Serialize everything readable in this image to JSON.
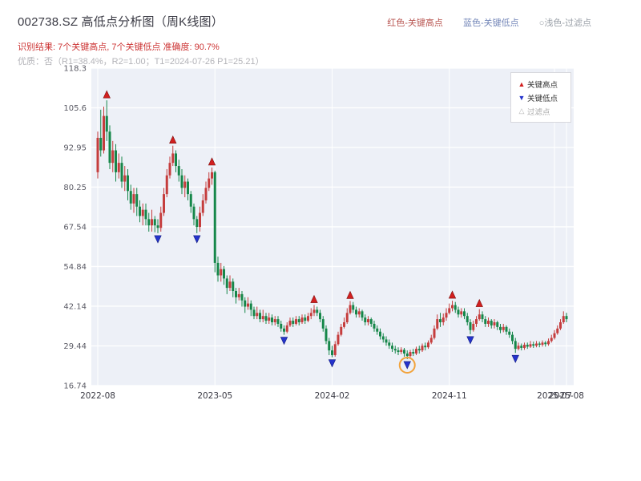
{
  "header": {
    "title": "002738.SZ 高低点分析图（周K线图）",
    "color_key": [
      {
        "label": "红色-关键高点",
        "color": "#b85450"
      },
      {
        "label": "蓝色-关键低点",
        "color": "#7386b8"
      },
      {
        "label": "○浅色-过滤点",
        "color": "#9aa0a8"
      }
    ],
    "result_line": "识别结果: 7个关键高点, 7个关键低点  准确度: 90.7%",
    "quality_line": "优质：否（R1=38.4%，R2=1.00；T1=2024-07-26 P1=25.21）"
  },
  "chart_legend": {
    "items": [
      {
        "label": "关键高点",
        "marker": "up-triangle",
        "color": "#d21f1f"
      },
      {
        "label": "关键低点",
        "marker": "down-triangle",
        "color": "#2433cc"
      },
      {
        "label": "过滤点",
        "marker": "up-triangle-outline",
        "color": "#aaaaaa"
      }
    ]
  },
  "chart_data": {
    "type": "candlestick",
    "symbol": "002738.SZ",
    "frequency": "weekly",
    "up_color": "#c53d3d",
    "down_color": "#16874a",
    "plot_bg": "#edf0f7",
    "ylim": [
      16.74,
      118.3
    ],
    "yticks": [
      {
        "label": "16.74",
        "value": 16.74
      },
      {
        "label": "29.44",
        "value": 29.44
      },
      {
        "label": "42.14",
        "value": 42.14
      },
      {
        "label": "54.84",
        "value": 54.84
      },
      {
        "label": "67.54",
        "value": 67.54
      },
      {
        "label": "80.25",
        "value": 80.25
      },
      {
        "label": "92.95",
        "value": 92.95
      },
      {
        "label": "105.6",
        "value": 105.6
      },
      {
        "label": "118.3",
        "value": 118.3
      }
    ],
    "xticks": [
      {
        "label": "2022-08",
        "index": 0
      },
      {
        "label": "2023-05",
        "index": 39
      },
      {
        "label": "2024-02",
        "index": 78
      },
      {
        "label": "2024-11",
        "index": 117
      },
      {
        "label": "2025-07",
        "index": 152
      },
      {
        "label": "2025-08",
        "index": 156
      }
    ],
    "dates": [
      "2022-08-05",
      "2022-08-12",
      "2022-08-19",
      "2022-08-26",
      "2022-09-02",
      "2022-09-09",
      "2022-09-16",
      "2022-09-23",
      "2022-09-30",
      "2022-10-07",
      "2022-10-14",
      "2022-10-21",
      "2022-10-28",
      "2022-11-04",
      "2022-11-11",
      "2022-11-18",
      "2022-11-25",
      "2022-12-02",
      "2022-12-09",
      "2022-12-16",
      "2022-12-23",
      "2022-12-30",
      "2023-01-06",
      "2023-01-13",
      "2023-01-20",
      "2023-01-27",
      "2023-02-03",
      "2023-02-10",
      "2023-02-17",
      "2023-02-24",
      "2023-03-03",
      "2023-03-10",
      "2023-03-17",
      "2023-03-24",
      "2023-03-31",
      "2023-04-07",
      "2023-04-14",
      "2023-04-21",
      "2023-04-28",
      "2023-05-05",
      "2023-05-12",
      "2023-05-19",
      "2023-05-26",
      "2023-06-02",
      "2023-06-09",
      "2023-06-16",
      "2023-06-23",
      "2023-06-30",
      "2023-07-07",
      "2023-07-14",
      "2023-07-21",
      "2023-07-28",
      "2023-08-04",
      "2023-08-11",
      "2023-08-18",
      "2023-08-25",
      "2023-09-01",
      "2023-09-08",
      "2023-09-15",
      "2023-09-22",
      "2023-09-29",
      "2023-10-06",
      "2023-10-13",
      "2023-10-20",
      "2023-10-27",
      "2023-11-03",
      "2023-11-10",
      "2023-11-17",
      "2023-11-24",
      "2023-12-01",
      "2023-12-08",
      "2023-12-15",
      "2023-12-22",
      "2023-12-29",
      "2024-01-05",
      "2024-01-12",
      "2024-01-19",
      "2024-01-26",
      "2024-02-02",
      "2024-02-09",
      "2024-02-16",
      "2024-02-23",
      "2024-03-01",
      "2024-03-08",
      "2024-03-15",
      "2024-03-22",
      "2024-03-29",
      "2024-04-05",
      "2024-04-12",
      "2024-04-19",
      "2024-04-26",
      "2024-05-03",
      "2024-05-10",
      "2024-05-17",
      "2024-05-24",
      "2024-05-31",
      "2024-06-07",
      "2024-06-14",
      "2024-06-21",
      "2024-06-28",
      "2024-07-05",
      "2024-07-12",
      "2024-07-19",
      "2024-07-26",
      "2024-08-02",
      "2024-08-09",
      "2024-08-16",
      "2024-08-23",
      "2024-08-30",
      "2024-09-06",
      "2024-09-13",
      "2024-09-20",
      "2024-09-27",
      "2024-10-04",
      "2024-10-11",
      "2024-10-18",
      "2024-10-25",
      "2024-11-01",
      "2024-11-08",
      "2024-11-15",
      "2024-11-22",
      "2024-11-29",
      "2024-12-06",
      "2024-12-13",
      "2024-12-20",
      "2024-12-27",
      "2025-01-03",
      "2025-01-10",
      "2025-01-17",
      "2025-01-24",
      "2025-01-31",
      "2025-02-07",
      "2025-02-14",
      "2025-02-21",
      "2025-02-28",
      "2025-03-07",
      "2025-03-14",
      "2025-03-21",
      "2025-03-28",
      "2025-04-04",
      "2025-04-11",
      "2025-04-18",
      "2025-04-25",
      "2025-05-02",
      "2025-05-09",
      "2025-05-16",
      "2025-05-23",
      "2025-05-30",
      "2025-06-06",
      "2025-06-13",
      "2025-06-20",
      "2025-06-27",
      "2025-07-04",
      "2025-07-11",
      "2025-07-18",
      "2025-07-25",
      "2025-08-01"
    ],
    "open": [
      85,
      96,
      92,
      103,
      98,
      88,
      92,
      85,
      88,
      82,
      84,
      79,
      75,
      78,
      74,
      71,
      73,
      70,
      68,
      70,
      68,
      67.2,
      72,
      78,
      84,
      88,
      91,
      87,
      84,
      80,
      82,
      78,
      74,
      70,
      67.5,
      72,
      76,
      80,
      83,
      85,
      56,
      52,
      54,
      51,
      48,
      50,
      47,
      45,
      46,
      44,
      42,
      43,
      41,
      39,
      40,
      38,
      39,
      37.5,
      38.5,
      37,
      38,
      36.5,
      35,
      34,
      36,
      37.5,
      36.5,
      38,
      37,
      38.5,
      37.5,
      39,
      40,
      41,
      40,
      38,
      35,
      31,
      28,
      26.5,
      30,
      33,
      35.5,
      37,
      40,
      42.5,
      41,
      39.5,
      40.5,
      38.5,
      37,
      38,
      36.5,
      35,
      34,
      32.5,
      31.5,
      30.5,
      29.5,
      28.5,
      28,
      27.5,
      28.2,
      27,
      26.2,
      27.5,
      27,
      28.5,
      28,
      29.5,
      29,
      30.5,
      32,
      35,
      38,
      37,
      38.5,
      40,
      41.5,
      42.5,
      41,
      39.5,
      40.5,
      39,
      37,
      34.5,
      36.5,
      38,
      39.5,
      38,
      36.5,
      37.5,
      36,
      37,
      35.5,
      34.5,
      35.5,
      34,
      33,
      31,
      28.5,
      29.5,
      28.8,
      29.8,
      29.2,
      30,
      29.5,
      30.2,
      29.8,
      30.5,
      30,
      31,
      32,
      33.5,
      35,
      37,
      39
    ],
    "high": [
      98,
      105,
      106,
      108,
      100,
      95,
      94,
      91,
      90,
      87,
      86,
      81,
      80,
      80,
      76,
      75,
      75,
      72,
      73,
      71,
      70,
      74,
      80,
      86,
      90,
      93.5,
      92,
      89,
      86,
      84,
      83,
      79,
      75,
      71,
      74,
      78,
      82,
      85,
      86.5,
      85.5,
      58,
      56,
      55,
      52,
      52,
      51,
      48,
      48,
      47,
      45,
      45,
      44,
      42,
      42,
      41,
      41,
      40,
      40,
      39.5,
      39,
      39,
      37.5,
      36,
      37,
      38.5,
      38.5,
      39,
      39,
      39.5,
      39.5,
      40,
      41.5,
      42.5,
      42,
      41,
      39,
      36,
      32,
      29.5,
      31,
      34,
      36.5,
      38.5,
      41.5,
      43.8,
      43.5,
      42,
      41.5,
      41,
      39.5,
      39,
      38.5,
      37.5,
      36,
      35,
      33.5,
      32.5,
      31.5,
      30.5,
      29.5,
      29,
      29,
      28.8,
      28,
      28.2,
      28.5,
      29.2,
      29.5,
      30.2,
      30.5,
      31.2,
      33,
      36,
      39.5,
      40,
      39.8,
      41.5,
      43,
      43.9,
      43.5,
      42,
      41.5,
      41.5,
      40,
      38,
      37.5,
      39,
      41.2,
      40.5,
      39,
      38.5,
      38,
      38,
      37.5,
      36.5,
      36.5,
      36,
      35,
      34,
      32,
      30.5,
      30.2,
      30.5,
      30.5,
      31,
      30.8,
      31,
      30.8,
      31.2,
      31,
      31.8,
      33,
      34.5,
      36,
      38,
      40.5,
      40
    ],
    "low": [
      83,
      90,
      91,
      95,
      86,
      85,
      82,
      83,
      80,
      79,
      76,
      73,
      72,
      71,
      69,
      68,
      68,
      66,
      66,
      65.8,
      65.5,
      66,
      71,
      77,
      83,
      87,
      85,
      82,
      78,
      77,
      76,
      72,
      68,
      65.5,
      66,
      71,
      75,
      79,
      81,
      53,
      50,
      50,
      49,
      46,
      47,
      45,
      43,
      44,
      42,
      40,
      41,
      39,
      38,
      38,
      37,
      37,
      36.5,
      36.5,
      36,
      36,
      35.5,
      34,
      33,
      33.5,
      35.5,
      35.5,
      36,
      36,
      36.5,
      36.5,
      37,
      38,
      39,
      39,
      37,
      34,
      30,
      26.5,
      25.8,
      26,
      29.5,
      32.5,
      35,
      36.5,
      39.5,
      40,
      38.5,
      38.5,
      37.5,
      36,
      36,
      35.5,
      34,
      33,
      31.5,
      30.5,
      29.5,
      28.5,
      27.5,
      27,
      26.5,
      26.8,
      26,
      25.21,
      25.8,
      26.2,
      26.5,
      27,
      27.5,
      28,
      28.5,
      30,
      31.5,
      34.5,
      35.5,
      36,
      37.5,
      39.5,
      40.5,
      40,
      38.5,
      38.5,
      38,
      36,
      33.2,
      34,
      35.5,
      37.5,
      37,
      35.5,
      35.5,
      35,
      35,
      34.5,
      33.5,
      33.8,
      33,
      32,
      30,
      27.2,
      28,
      28,
      28.2,
      28.5,
      28.8,
      28.8,
      29,
      29,
      29.2,
      29.2,
      29.5,
      30.5,
      31.5,
      33,
      34.5,
      36.5,
      37
    ],
    "close": [
      96,
      92,
      103,
      98,
      88,
      92,
      85,
      88,
      82,
      84,
      79,
      75,
      78,
      74,
      71,
      73,
      70,
      68,
      70,
      68,
      67.2,
      72,
      78,
      84,
      88,
      91,
      87,
      84,
      80,
      82,
      78,
      74,
      70,
      67.5,
      72,
      76,
      80,
      83,
      85,
      56,
      52,
      54,
      51,
      48,
      50,
      47,
      45,
      46,
      44,
      42,
      43,
      41,
      39,
      40,
      38,
      39,
      37.5,
      38.5,
      37,
      38,
      36.5,
      35,
      34,
      36,
      37.5,
      36.5,
      38,
      37,
      38.5,
      37.5,
      39,
      40,
      41,
      40,
      38,
      35,
      31,
      28,
      26.5,
      30,
      33,
      35.5,
      37,
      40,
      42.5,
      41,
      39.5,
      40.5,
      38.5,
      37,
      38,
      36.5,
      35,
      34,
      32.5,
      31.5,
      30.5,
      29.5,
      28.5,
      28,
      27.5,
      28.2,
      27,
      26.2,
      27.5,
      27,
      28.5,
      28,
      29.5,
      29,
      30.5,
      32,
      35,
      38,
      37,
      38.5,
      40,
      41.5,
      42.5,
      41,
      39.5,
      40.5,
      39,
      37,
      34.5,
      36.5,
      38,
      39.5,
      38,
      36.5,
      37.5,
      36,
      37,
      35.5,
      34.5,
      35.5,
      34,
      33,
      31,
      28.5,
      29.5,
      28.8,
      29.8,
      29.2,
      30,
      29.5,
      30.2,
      29.8,
      30.5,
      30,
      31,
      32,
      33.5,
      35,
      37,
      39,
      38
    ],
    "key_highs": [
      {
        "date": "2022-08-26",
        "price": 108
      },
      {
        "date": "2023-01-27",
        "price": 93.5
      },
      {
        "date": "2023-04-28",
        "price": 86.5
      },
      {
        "date": "2023-12-22",
        "price": 42.5
      },
      {
        "date": "2024-03-15",
        "price": 43.8
      },
      {
        "date": "2024-11-08",
        "price": 43.9
      },
      {
        "date": "2025-01-10",
        "price": 41.2
      }
    ],
    "key_lows": [
      {
        "date": "2022-12-23",
        "price": 65.5
      },
      {
        "date": "2023-03-24",
        "price": 65.5
      },
      {
        "date": "2023-10-13",
        "price": 33.0
      },
      {
        "date": "2024-02-02",
        "price": 25.8
      },
      {
        "date": "2024-07-26",
        "price": 25.21
      },
      {
        "date": "2024-12-20",
        "price": 33.2
      },
      {
        "date": "2025-04-04",
        "price": 27.2
      }
    ],
    "highlight": {
      "date": "2024-07-26",
      "price": 25.21,
      "color": "#f2a33c"
    },
    "annotations": {
      "key_high_count": 7,
      "key_low_count": 7,
      "accuracy": "90.7%",
      "r1": "38.4%",
      "r2": "1.00",
      "t1": "2024-07-26",
      "p1": 25.21
    }
  }
}
